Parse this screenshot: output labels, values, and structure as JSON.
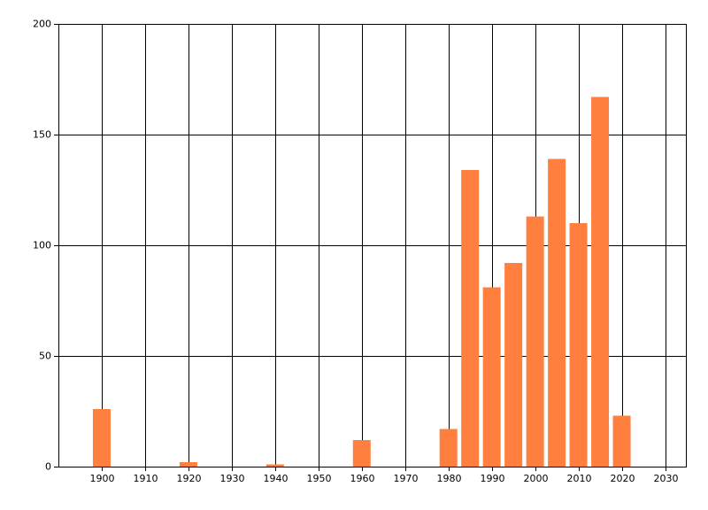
{
  "chart_data": {
    "type": "bar",
    "x": [
      1900,
      1920,
      1940,
      1960,
      1980,
      1985,
      1990,
      1995,
      2000,
      2005,
      2010,
      2015,
      2020
    ],
    "values": [
      26,
      2,
      1,
      12,
      17,
      134,
      81,
      92,
      113,
      139,
      110,
      167,
      23
    ],
    "color": "#ff7f3f",
    "xlim": [
      1890,
      2035
    ],
    "xticks": [
      1900,
      1910,
      1920,
      1930,
      1940,
      1950,
      1960,
      1970,
      1980,
      1990,
      2000,
      2010,
      2020,
      2030
    ],
    "ylim": [
      0,
      200
    ],
    "yticks": [
      0,
      50,
      100,
      150,
      200
    ],
    "grid": true
  }
}
